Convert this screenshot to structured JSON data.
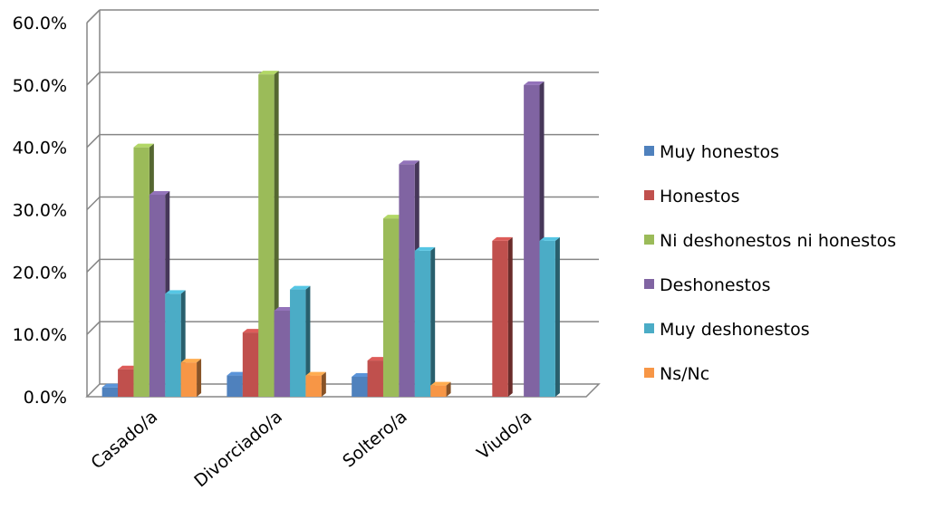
{
  "chart_data": {
    "type": "bar",
    "title": "",
    "xlabel": "",
    "ylabel": "",
    "ylim": [
      0,
      60
    ],
    "ytick_step": 10,
    "ytick_format": "percent_1dp",
    "grid": true,
    "legend_position": "right",
    "categories": [
      "Casado/a",
      "Divorciado/a",
      "Soltero/a",
      "Viudo/a"
    ],
    "series": [
      {
        "name": "Muy honestos",
        "color": "#4F81BD",
        "values": [
          1.5,
          3.4,
          3.2,
          0
        ]
      },
      {
        "name": "Honestos",
        "color": "#C0504D",
        "values": [
          4.4,
          10.3,
          5.8,
          25.0
        ]
      },
      {
        "name": "Ni deshonestos ni honestos",
        "color": "#9BBB59",
        "values": [
          40.0,
          51.7,
          28.6,
          0
        ]
      },
      {
        "name": "Deshonestos",
        "color": "#8064A2",
        "values": [
          32.4,
          13.8,
          37.3,
          50.0
        ]
      },
      {
        "name": "Muy deshonestos",
        "color": "#4BACC6",
        "values": [
          16.5,
          17.2,
          23.4,
          25.0
        ]
      },
      {
        "name": "Ns/Nc",
        "color": "#F79646",
        "values": [
          5.5,
          3.4,
          1.8,
          0
        ]
      }
    ]
  }
}
